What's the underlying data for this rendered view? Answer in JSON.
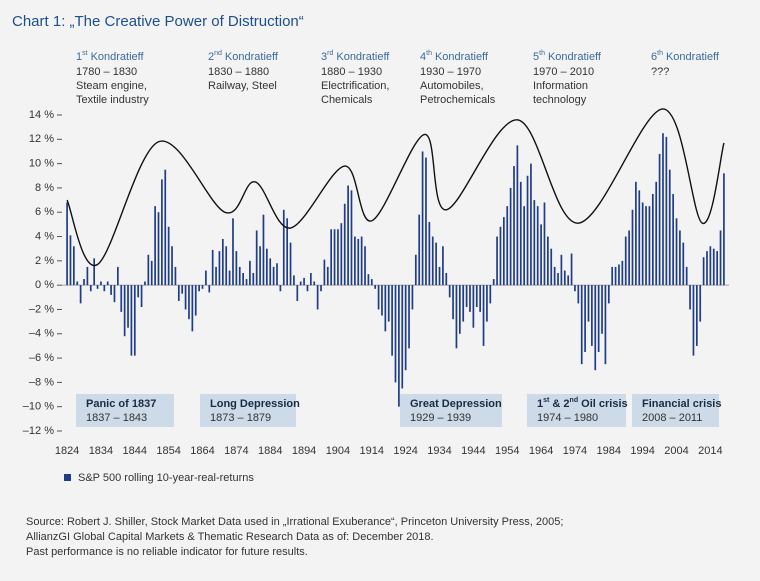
{
  "chart_data": {
    "type": "bar",
    "title": "Chart 1: „The Creative Power of Distruction“",
    "x": [
      1824,
      1825,
      1826,
      1827,
      1828,
      1829,
      1830,
      1831,
      1832,
      1833,
      1834,
      1835,
      1836,
      1837,
      1838,
      1839,
      1840,
      1841,
      1842,
      1843,
      1844,
      1845,
      1846,
      1847,
      1848,
      1849,
      1850,
      1851,
      1852,
      1853,
      1854,
      1855,
      1856,
      1857,
      1858,
      1859,
      1860,
      1861,
      1862,
      1863,
      1864,
      1865,
      1866,
      1867,
      1868,
      1869,
      1870,
      1871,
      1872,
      1873,
      1874,
      1875,
      1876,
      1877,
      1878,
      1879,
      1880,
      1881,
      1882,
      1883,
      1884,
      1885,
      1886,
      1887,
      1888,
      1889,
      1890,
      1891,
      1892,
      1893,
      1894,
      1895,
      1896,
      1897,
      1898,
      1899,
      1900,
      1901,
      1902,
      1903,
      1904,
      1905,
      1906,
      1907,
      1908,
      1909,
      1910,
      1911,
      1912,
      1913,
      1914,
      1915,
      1916,
      1917,
      1918,
      1919,
      1920,
      1921,
      1922,
      1923,
      1924,
      1925,
      1926,
      1927,
      1928,
      1929,
      1930,
      1931,
      1932,
      1933,
      1934,
      1935,
      1936,
      1937,
      1938,
      1939,
      1940,
      1941,
      1942,
      1943,
      1944,
      1945,
      1946,
      1947,
      1948,
      1949,
      1950,
      1951,
      1952,
      1953,
      1954,
      1955,
      1956,
      1957,
      1958,
      1959,
      1960,
      1961,
      1962,
      1963,
      1964,
      1965,
      1966,
      1967,
      1968,
      1969,
      1970,
      1971,
      1972,
      1973,
      1974,
      1975,
      1976,
      1977,
      1978,
      1979,
      1980,
      1981,
      1982,
      1983,
      1984,
      1985,
      1986,
      1987,
      1988,
      1989,
      1990,
      1991,
      1992,
      1993,
      1994,
      1995,
      1996,
      1997,
      1998,
      1999,
      2000,
      2001,
      2002,
      2003,
      2004,
      2005,
      2006,
      2007,
      2008,
      2009,
      2010,
      2011,
      2012,
      2013,
      2014,
      2015,
      2016,
      2017,
      2018
    ],
    "series": [
      {
        "name": "S&P 500 rolling 10-year-real-returns",
        "color": "#1f3c88",
        "values": [
          6.8,
          4.1,
          3.2,
          0.3,
          -1.5,
          0.5,
          1.5,
          -0.5,
          2.2,
          -0.3,
          0.3,
          -0.5,
          0.3,
          -0.8,
          -1.4,
          1.5,
          -2.2,
          -4.2,
          -3.5,
          -5.8,
          -5.8,
          -1.0,
          -1.8,
          0.3,
          2.5,
          2.0,
          6.5,
          6.0,
          8.7,
          9.5,
          4.8,
          3.2,
          1.5,
          -1.3,
          -0.7,
          -2.0,
          -2.8,
          -3.8,
          -2.5,
          -0.5,
          -0.3,
          1.2,
          -0.6,
          2.9,
          1.5,
          2.8,
          3.8,
          3.2,
          1.2,
          5.5,
          2.8,
          1.5,
          1.0,
          0.5,
          2.0,
          1.0,
          4.5,
          3.2,
          5.8,
          3.0,
          2.2,
          1.5,
          1.8,
          -0.5,
          6.2,
          5.5,
          3.5,
          0.8,
          -1.3,
          0.3,
          0.6,
          -0.5,
          1.0,
          0.3,
          -2.0,
          -0.5,
          2.1,
          1.5,
          4.6,
          4.6,
          4.6,
          5.1,
          6.7,
          8.2,
          7.8,
          4.0,
          3.8,
          4.0,
          3.2,
          0.9,
          0.5,
          -0.3,
          -2.0,
          -2.5,
          -3.8,
          -3.0,
          -5.8,
          -8.0,
          -10.0,
          -8.5,
          -7.0,
          -5.2,
          -2.0,
          2.5,
          5.8,
          11.0,
          10.5,
          5.2,
          4.0,
          3.5,
          1.5,
          3.2,
          1.0,
          -1.0,
          -2.8,
          -5.2,
          -4.0,
          -3.0,
          -1.8,
          -2.2,
          -3.5,
          -1.8,
          -2.2,
          -5.0,
          -3.0,
          -1.5,
          0.5,
          4.0,
          4.8,
          5.6,
          6.5,
          8.0,
          9.8,
          11.5,
          8.5,
          6.5,
          9.0,
          10.0,
          7.0,
          6.5,
          5.0,
          6.8,
          4.0,
          3.0,
          1.5,
          1.0,
          2.5,
          1.2,
          0.8,
          2.6,
          -0.5,
          -1.5,
          -6.5,
          -5.5,
          -3.0,
          -5.0,
          -7.0,
          -5.5,
          -4.0,
          -6.5,
          -1.5,
          1.5,
          1.5,
          1.7,
          2.0,
          4.0,
          4.5,
          6.2,
          8.5,
          7.8,
          6.8,
          6.5,
          6.5,
          7.5,
          8.5,
          10.8,
          12.5,
          12.2,
          9.5,
          7.5,
          5.5,
          4.5,
          3.5,
          1.5,
          -2.0,
          -5.8,
          -5.0,
          -3.0,
          2.3,
          2.8,
          3.2,
          3.0,
          2.8,
          4.5,
          9.2
        ]
      }
    ],
    "curve": {
      "type": "line",
      "color": "#111111",
      "x": [
        1824,
        1833,
        1851,
        1870.6,
        1879.5,
        1890,
        1906,
        1914,
        1929.6,
        1936,
        1957,
        1975,
        2000,
        2011.6,
        2018
      ],
      "values": [
        7.0,
        1.7,
        11.8,
        6.0,
        8.5,
        4.7,
        9.8,
        5.3,
        12.4,
        6.2,
        13.6,
        5.1,
        14.5,
        5.1,
        11.7
      ]
    },
    "xlim": [
      1822.5,
      2019.5
    ],
    "xticks": [
      1824,
      1834,
      1844,
      1854,
      1864,
      1874,
      1884,
      1894,
      1904,
      1914,
      1924,
      1934,
      1944,
      1954,
      1964,
      1974,
      1984,
      1994,
      2004,
      2014
    ],
    "ylim": [
      -12,
      14
    ],
    "yticks": [
      {
        "value": 14,
        "label": "14 %"
      },
      {
        "value": 12,
        "label": "12 %"
      },
      {
        "value": 10,
        "label": "10 %"
      },
      {
        "value": 8,
        "label": "8 %"
      },
      {
        "value": 6,
        "label": "6 %"
      },
      {
        "value": 4,
        "label": "4 %"
      },
      {
        "value": 2,
        "label": "2 %"
      },
      {
        "value": 0,
        "label": "0 %"
      },
      {
        "value": -2,
        "label": "–2 %"
      },
      {
        "value": -4,
        "label": "–4 %"
      },
      {
        "value": -6,
        "label": "–6 %"
      },
      {
        "value": -8,
        "label": "–8 %"
      },
      {
        "value": -10,
        "label": "–10 %"
      },
      {
        "value": -12,
        "label": "–12 %"
      }
    ],
    "kondratieff": [
      {
        "num": "1",
        "sup": "st",
        "name": "Kondratieff",
        "lines": [
          "1780 – 1830",
          "Steam engine,",
          "Textile industry"
        ]
      },
      {
        "num": "2",
        "sup": "nd",
        "name": "Kondratieff",
        "lines": [
          "1830 – 1880",
          "Railway, Steel"
        ]
      },
      {
        "num": "3",
        "sup": "rd",
        "name": "Kondratieff",
        "lines": [
          "1880 – 1930",
          "Electrification,",
          "Chemicals"
        ]
      },
      {
        "num": "4",
        "sup": "th",
        "name": "Kondratieff",
        "lines": [
          "1930 – 1970",
          "Automobiles,",
          "Petrochemicals"
        ]
      },
      {
        "num": "5",
        "sup": "th",
        "name": "Kondratieff",
        "lines": [
          "1970 – 2010",
          "Information",
          "technology"
        ]
      },
      {
        "num": "6",
        "sup": "th",
        "name": "Kondratieff",
        "lines": [
          "???"
        ]
      }
    ],
    "crises": [
      {
        "title": [
          {
            "text": "Panic of 1837"
          }
        ],
        "years": "1837 – 1843"
      },
      {
        "title": [
          {
            "text": "Long Depression"
          }
        ],
        "years": "1873 – 1879"
      },
      {
        "title": [
          {
            "text": "Great Depression"
          }
        ],
        "years": "1929 – 1939"
      },
      {
        "title": [
          {
            "text": "1"
          },
          {
            "sup": "st"
          },
          {
            "text": " & 2"
          },
          {
            "sup": "nd"
          },
          {
            "text": " Oil crisis"
          }
        ],
        "years": "1974 – 1980"
      },
      {
        "title": [
          {
            "text": "Financial crisis"
          }
        ],
        "years": "2008 – 2011"
      }
    ],
    "source": [
      "Source: Robert J. Shiller, Stock Market Data used in „Irrational Exuberance“, Princeton University Press, 2005;",
      "AllianzGI Global Capital Markets & Thematic Research Data as of: December 2018.",
      "Past performance is no reliable indicator for future results."
    ]
  }
}
